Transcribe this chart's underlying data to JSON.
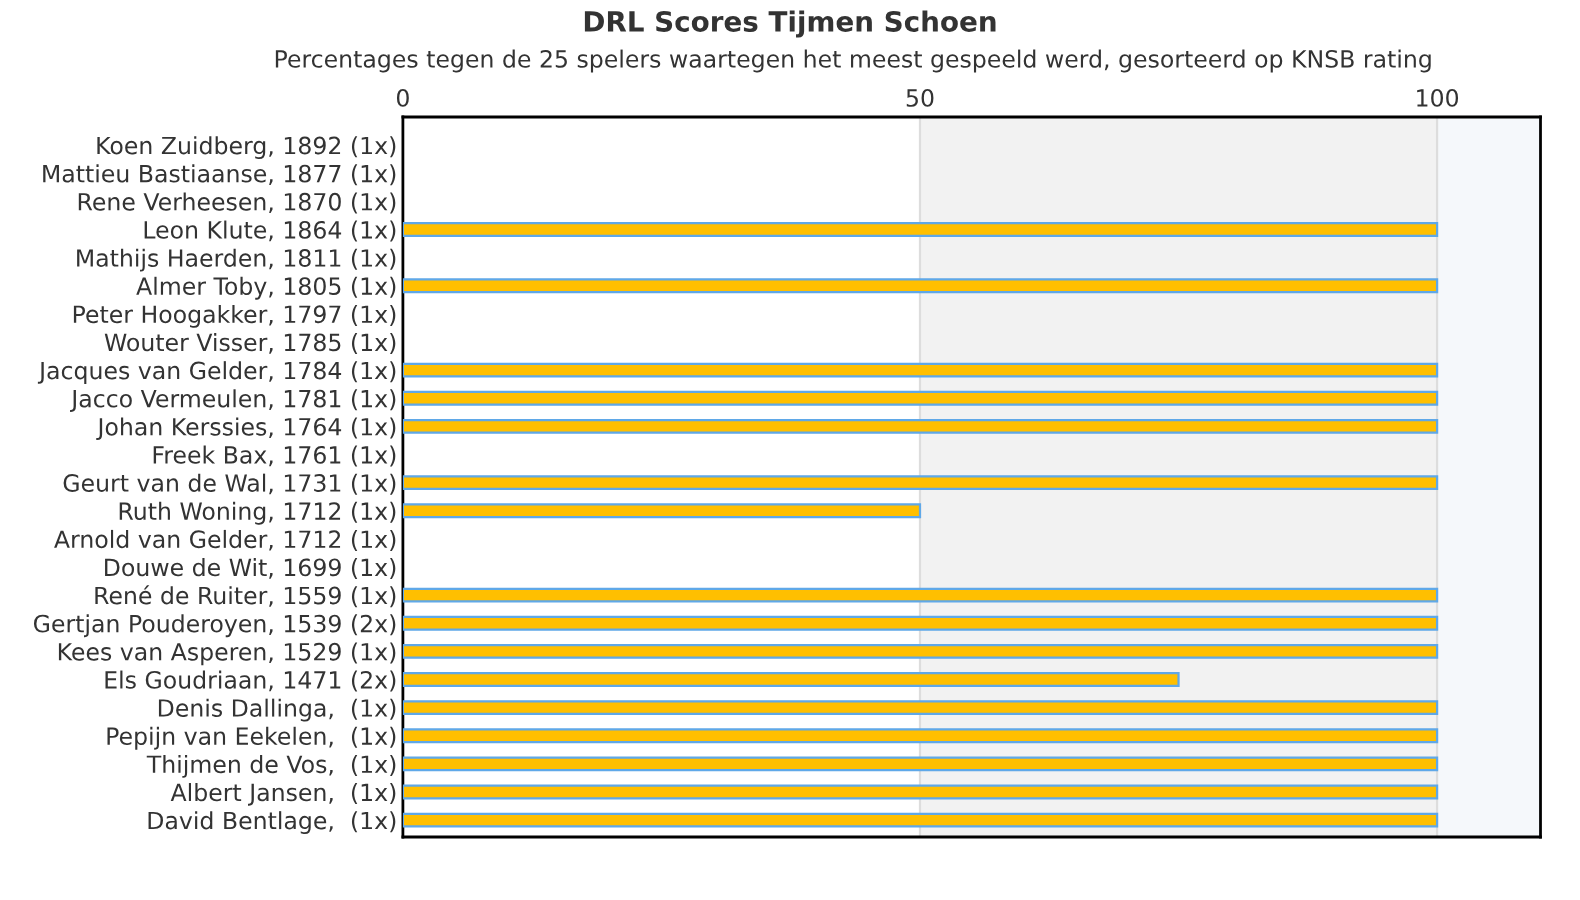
{
  "chart_data": {
    "type": "bar",
    "orientation": "horizontal",
    "title": "DRL Scores Tijmen Schoen",
    "subtitle": "Percentages tegen de 25 spelers waartegen het meest gespeeld werd, gesorteerd op KNSB rating",
    "categories": [
      "Koen Zuidberg, 1892 (1x)",
      "Mattieu Bastiaanse, 1877 (1x)",
      "Rene Verheesen, 1870 (1x)",
      "Leon Klute, 1864 (1x)",
      "Mathijs Haerden, 1811 (1x)",
      "Almer Toby, 1805 (1x)",
      "Peter Hoogakker, 1797 (1x)",
      "Wouter Visser, 1785 (1x)",
      "Jacques van Gelder, 1784 (1x)",
      "Jacco Vermeulen, 1781 (1x)",
      "Johan Kerssies, 1764 (1x)",
      "Freek Bax, 1761 (1x)",
      "Geurt van de Wal, 1731 (1x)",
      "Ruth Woning, 1712 (1x)",
      "Arnold van Gelder, 1712 (1x)",
      "Douwe de Wit, 1699 (1x)",
      "René de Ruiter, 1559 (1x)",
      "Gertjan Pouderoyen, 1539 (2x)",
      "Kees van Asperen, 1529 (1x)",
      "Els Goudriaan, 1471 (2x)",
      "Denis Dallinga,  (1x)",
      "Pepijn van Eekelen,  (1x)",
      "Thijmen de Vos,  (1x)",
      "Albert Jansen,  (1x)",
      "David Bentlage,  (1x)"
    ],
    "values": [
      0,
      0,
      0,
      100,
      0,
      100,
      0,
      0,
      100,
      100,
      100,
      0,
      100,
      50,
      0,
      0,
      100,
      100,
      100,
      75,
      100,
      100,
      100,
      100,
      100
    ],
    "color": "#ffbf00",
    "xlim": [
      0,
      110
    ],
    "xticks": [
      0,
      50,
      100
    ],
    "grid": "x",
    "bands": [
      {
        "axis": "x",
        "from": 50,
        "to": 100,
        "color": "#f2f2f2"
      },
      {
        "axis": "x",
        "from": 100,
        "to": 110,
        "color": "#f5f8fb"
      }
    ]
  }
}
